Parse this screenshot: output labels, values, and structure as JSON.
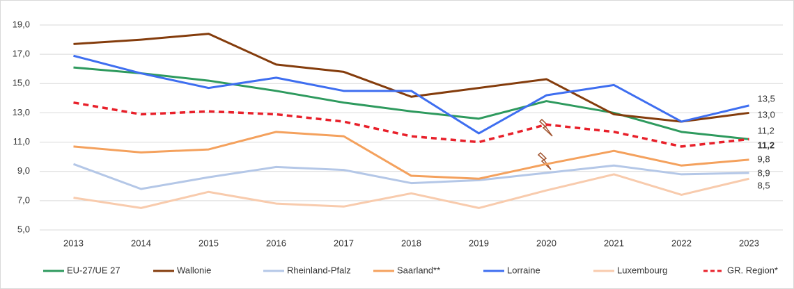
{
  "chart_data": {
    "type": "line",
    "categories": [
      "2013",
      "2014",
      "2015",
      "2016",
      "2017",
      "2018",
      "2019",
      "2020",
      "2021",
      "2022",
      "2023"
    ],
    "ylim": [
      5,
      19
    ],
    "yticks": [
      {
        "value": 5,
        "label": "5,0"
      },
      {
        "value": 7,
        "label": "7,0"
      },
      {
        "value": 9,
        "label": "9,0"
      },
      {
        "value": 11,
        "label": "11,0"
      },
      {
        "value": 13,
        "label": "13,0"
      },
      {
        "value": 15,
        "label": "15,0"
      },
      {
        "value": 17,
        "label": "17,0"
      },
      {
        "value": 19,
        "label": "19,0"
      }
    ],
    "grid": true,
    "legend": "bottom",
    "series": [
      {
        "name": "EU-27/UE 27",
        "color": "#2e9a5e",
        "values": [
          16.1,
          15.7,
          15.2,
          14.5,
          13.7,
          13.1,
          12.6,
          13.8,
          13.0,
          11.7,
          11.2
        ],
        "value_labels": [
          null,
          null,
          null,
          null,
          null,
          null,
          null,
          null,
          null,
          null,
          "11,2"
        ]
      },
      {
        "name": "Wallonie",
        "color": "#843c0c",
        "values": [
          17.7,
          18.0,
          18.4,
          16.3,
          15.8,
          14.1,
          14.7,
          15.3,
          12.9,
          12.4,
          13.0
        ],
        "value_labels": [
          null,
          null,
          null,
          null,
          null,
          null,
          null,
          null,
          null,
          null,
          "13,0"
        ]
      },
      {
        "name": "Rheinland-Pfalz",
        "color": "#b4c7e7",
        "values": [
          9.5,
          7.8,
          8.6,
          9.3,
          9.1,
          8.2,
          8.4,
          8.9,
          9.4,
          8.8,
          8.9
        ],
        "value_labels": [
          null,
          null,
          null,
          null,
          null,
          null,
          null,
          null,
          null,
          null,
          "8,9"
        ]
      },
      {
        "name": "Saarland**",
        "color": "#f4a15d",
        "values": [
          10.7,
          10.3,
          10.5,
          11.7,
          11.4,
          8.7,
          8.5,
          9.5,
          10.4,
          9.4,
          9.8
        ],
        "value_labels": [
          null,
          null,
          null,
          null,
          null,
          null,
          null,
          null,
          null,
          null,
          "9,8"
        ]
      },
      {
        "name": "Lorraine",
        "color": "#3e6ef0",
        "values": [
          16.9,
          15.7,
          14.7,
          15.4,
          14.5,
          14.5,
          11.6,
          14.2,
          14.9,
          12.4,
          13.5
        ],
        "value_labels": [
          null,
          null,
          null,
          null,
          null,
          null,
          null,
          null,
          null,
          null,
          "13,5"
        ]
      },
      {
        "name": "Luxembourg",
        "color": "#f8cbad",
        "values": [
          7.2,
          6.5,
          7.6,
          6.8,
          6.6,
          7.5,
          6.5,
          7.7,
          8.8,
          7.4,
          8.5
        ],
        "value_labels": [
          null,
          null,
          null,
          null,
          null,
          null,
          null,
          null,
          null,
          null,
          "8,5"
        ]
      },
      {
        "name": "GR. Region*",
        "color": "#e8202a",
        "dashed": true,
        "values": [
          13.7,
          12.9,
          13.1,
          12.9,
          12.4,
          11.4,
          11.0,
          12.2,
          11.7,
          10.7,
          11.2
        ],
        "value_labels": [
          null,
          null,
          null,
          null,
          null,
          null,
          null,
          null,
          null,
          null,
          "11,2"
        ]
      }
    ]
  }
}
